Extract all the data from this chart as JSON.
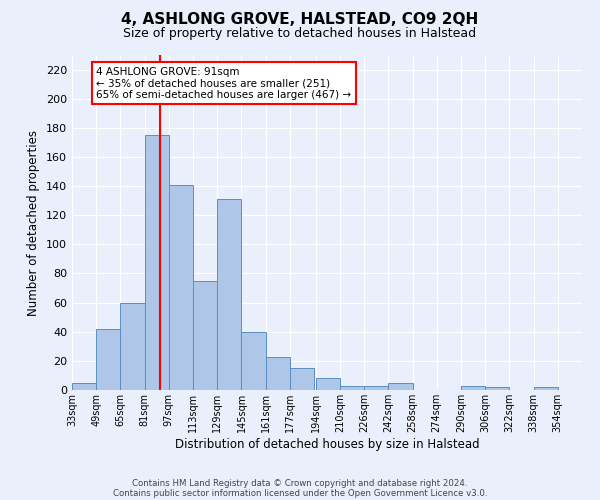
{
  "title": "4, ASHLONG GROVE, HALSTEAD, CO9 2QH",
  "subtitle": "Size of property relative to detached houses in Halstead",
  "xlabel": "Distribution of detached houses by size in Halstead",
  "ylabel": "Number of detached properties",
  "footnote1": "Contains HM Land Registry data © Crown copyright and database right 2024.",
  "footnote2": "Contains public sector information licensed under the Open Government Licence v3.0.",
  "bin_labels": [
    "33sqm",
    "49sqm",
    "65sqm",
    "81sqm",
    "97sqm",
    "113sqm",
    "129sqm",
    "145sqm",
    "161sqm",
    "177sqm",
    "194sqm",
    "210sqm",
    "226sqm",
    "242sqm",
    "258sqm",
    "274sqm",
    "290sqm",
    "306sqm",
    "322sqm",
    "338sqm",
    "354sqm"
  ],
  "bin_edges": [
    33,
    49,
    65,
    81,
    97,
    113,
    129,
    145,
    161,
    177,
    194,
    210,
    226,
    242,
    258,
    274,
    290,
    306,
    322,
    338,
    354
  ],
  "bar_heights": [
    5,
    42,
    60,
    175,
    141,
    75,
    131,
    40,
    23,
    15,
    8,
    3,
    3,
    5,
    0,
    0,
    3,
    2,
    0,
    2
  ],
  "bar_color": "#aec6e8",
  "bar_edge_color": "#5a8fc2",
  "property_size": 91,
  "vline_color": "red",
  "annotation_line1": "4 ASHLONG GROVE: 91sqm",
  "annotation_line2": "← 35% of detached houses are smaller (251)",
  "annotation_line3": "65% of semi-detached houses are larger (467) →",
  "annotation_box_color": "white",
  "annotation_box_edge_color": "red",
  "background_color": "#eaf0fb",
  "ylim": [
    0,
    230
  ],
  "yticks": [
    0,
    20,
    40,
    60,
    80,
    100,
    120,
    140,
    160,
    180,
    200,
    220
  ]
}
